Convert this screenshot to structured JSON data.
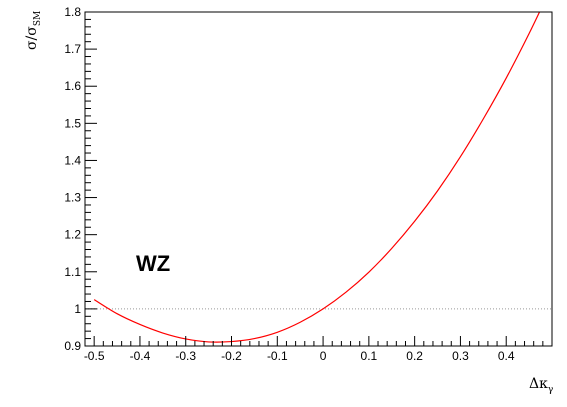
{
  "chart_data": {
    "type": "line",
    "title": "",
    "xlabel": {
      "main": "Δκ",
      "sub": "γ"
    },
    "ylabel": {
      "main": "σ/σ",
      "sub": "SM"
    },
    "xlim": [
      -0.52,
      0.5
    ],
    "ylim": [
      0.9,
      1.8
    ],
    "x_ticks": [
      -0.5,
      -0.4,
      -0.3,
      -0.2,
      -0.1,
      0,
      0.1,
      0.2,
      0.3,
      0.4
    ],
    "x_tick_labels": [
      "-0.5",
      "-0.4",
      "-0.3",
      "-0.2",
      "-0.1",
      "0",
      "0.1",
      "0.2",
      "0.3",
      "0.4"
    ],
    "y_ticks": [
      0.9,
      1.0,
      1.1,
      1.2,
      1.3,
      1.4,
      1.5,
      1.6,
      1.7,
      1.8
    ],
    "y_tick_labels": [
      "0.9",
      "1",
      "1.1",
      "1.2",
      "1.3",
      "1.4",
      "1.5",
      "1.6",
      "1.7",
      "1.8"
    ],
    "reference_line": {
      "y": 1.0,
      "style": "dotted",
      "color": "#999999"
    },
    "annotation": "WZ",
    "grid": false,
    "series": [
      {
        "color": "#ff0000",
        "x": [
          -0.5,
          -0.45,
          -0.4,
          -0.35,
          -0.3,
          -0.25,
          -0.2,
          -0.15,
          -0.1,
          -0.05,
          0.0,
          0.05,
          0.1,
          0.15,
          0.2,
          0.25,
          0.3,
          0.35,
          0.4,
          0.45,
          0.49
        ],
        "y": [
          1.025,
          0.987,
          0.958,
          0.935,
          0.919,
          0.911,
          0.912,
          0.92,
          0.937,
          0.964,
          1.0,
          1.045,
          1.099,
          1.163,
          1.236,
          1.318,
          1.41,
          1.512,
          1.622,
          1.742,
          1.845
        ]
      }
    ]
  }
}
